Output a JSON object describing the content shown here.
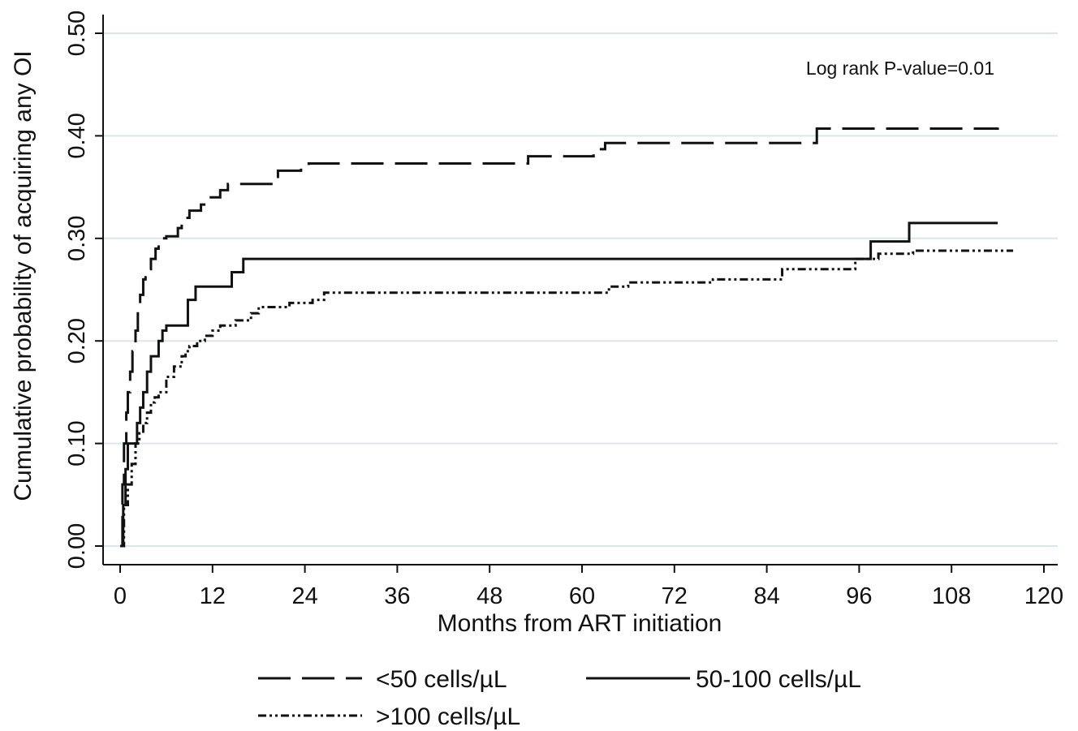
{
  "chart_data": {
    "type": "line",
    "title": "",
    "xlabel": "Months from ART initiation",
    "ylabel": "Cumulative probability of acquiring any OI",
    "xlim": [
      0,
      120
    ],
    "ylim": [
      0,
      0.5
    ],
    "xticks": [
      0,
      12,
      24,
      36,
      48,
      60,
      72,
      84,
      96,
      108,
      120
    ],
    "xtick_labels": [
      "0",
      "12",
      "24",
      "36",
      "48",
      "60",
      "72",
      "84",
      "96",
      "108",
      "120"
    ],
    "yticks": [
      0,
      0.1,
      0.2,
      0.3,
      0.4,
      0.5
    ],
    "ytick_labels": [
      "0.00",
      "0.10",
      "0.20",
      "0.30",
      "0.40",
      "0.50"
    ],
    "grid": "horizontal",
    "annotation": "Log rank P-value=0.01",
    "legend_position": "bottom",
    "line_color": "#111111",
    "grid_color": "#dbe6ea",
    "series": [
      {
        "name": "<50 cells/µL",
        "dash": "long-dash",
        "x": [
          0,
          0.3,
          0.5,
          0.8,
          1.0,
          1.3,
          1.6,
          2.0,
          2.3,
          2.6,
          3.0,
          3.3,
          3.6,
          4.0,
          4.6,
          5.0,
          5.5,
          6.0,
          7.5,
          8.0,
          9.0,
          10.5,
          11.5,
          13.0,
          14.0,
          20.0,
          20.5,
          23.5,
          24.5,
          53.0,
          61.5,
          63.0,
          90.5,
          114.0
        ],
        "y": [
          0,
          0.06,
          0.1,
          0.13,
          0.15,
          0.17,
          0.19,
          0.21,
          0.23,
          0.245,
          0.26,
          0.265,
          0.27,
          0.28,
          0.29,
          0.295,
          0.3,
          0.302,
          0.31,
          0.32,
          0.327,
          0.333,
          0.34,
          0.347,
          0.353,
          0.36,
          0.366,
          0.37,
          0.373,
          0.38,
          0.387,
          0.393,
          0.407,
          0.408
        ]
      },
      {
        "name": "50-100 cells/µL",
        "dash": "solid",
        "x": [
          0,
          0.4,
          0.7,
          1.0,
          2.2,
          2.6,
          3.0,
          3.5,
          4.0,
          5.0,
          5.5,
          6.0,
          8.8,
          9.8,
          14.5,
          16.0,
          97.5,
          102.5,
          114.0
        ],
        "y": [
          0,
          0.04,
          0.075,
          0.1,
          0.12,
          0.135,
          0.15,
          0.17,
          0.185,
          0.2,
          0.21,
          0.215,
          0.24,
          0.253,
          0.267,
          0.28,
          0.297,
          0.315,
          0.315
        ]
      },
      {
        "name": ">100 cells/µL",
        "dash": "dash-dot-dot",
        "x": [
          0,
          0.5,
          1.0,
          1.5,
          2.0,
          2.5,
          3.0,
          3.5,
          4.0,
          4.5,
          5.0,
          6.0,
          7.0,
          8.0,
          8.5,
          9.0,
          10.0,
          11.0,
          12.0,
          13.0,
          15.0,
          17.0,
          18.0,
          22.0,
          25.0,
          26.5,
          63.5,
          66.0,
          77.0,
          86.0,
          95.5,
          98.5,
          103.0,
          116.0
        ],
        "y": [
          0,
          0.04,
          0.06,
          0.08,
          0.1,
          0.11,
          0.12,
          0.13,
          0.14,
          0.145,
          0.15,
          0.165,
          0.175,
          0.185,
          0.19,
          0.195,
          0.2,
          0.205,
          0.21,
          0.215,
          0.22,
          0.227,
          0.233,
          0.237,
          0.24,
          0.247,
          0.253,
          0.257,
          0.26,
          0.27,
          0.28,
          0.285,
          0.288,
          0.288
        ]
      }
    ]
  }
}
